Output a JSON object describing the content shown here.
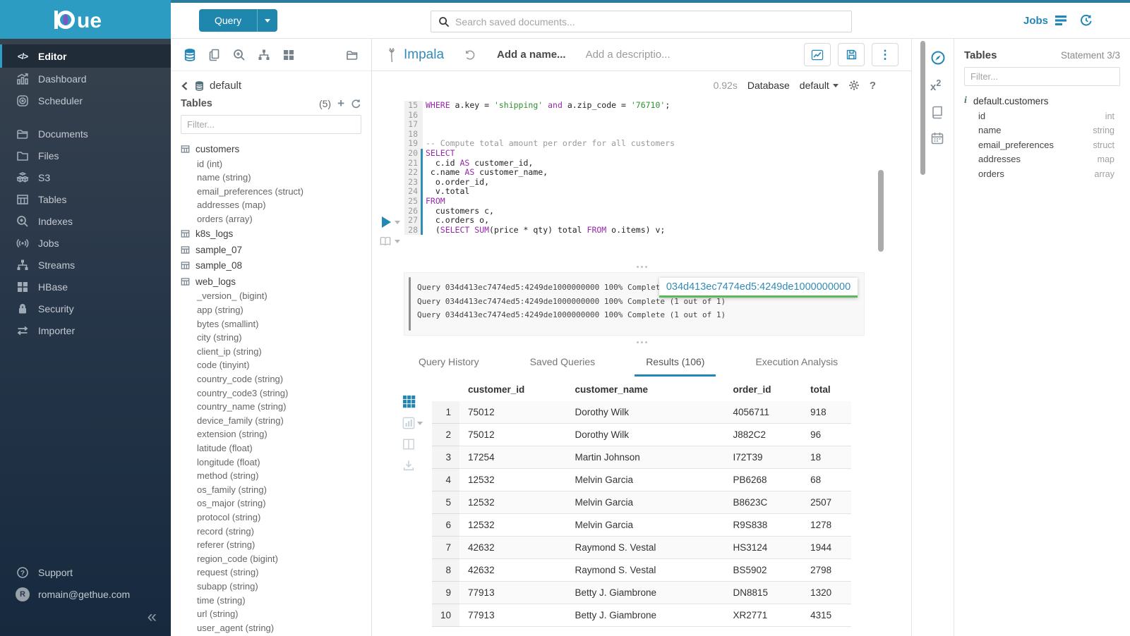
{
  "icons": {
    "editor_glyph": "</>",
    "plus": "+",
    "help": "?",
    "collapse": "«",
    "info": "i",
    "x2_base": "x",
    "x2_sup": "2",
    "kebab": "⋮",
    "avatar_letter": "R"
  },
  "logo": {
    "text": "ue"
  },
  "topbar": {
    "query_button": "Query",
    "search_placeholder": "Search saved documents...",
    "jobs_label": "Jobs"
  },
  "sidebar": {
    "items": [
      {
        "label": "Editor"
      },
      {
        "label": "Dashboard"
      },
      {
        "label": "Scheduler"
      },
      {
        "label": "Documents"
      },
      {
        "label": "Files"
      },
      {
        "label": "S3"
      },
      {
        "label": "Tables"
      },
      {
        "label": "Indexes"
      },
      {
        "label": "Jobs"
      },
      {
        "label": "Streams"
      },
      {
        "label": "HBase"
      },
      {
        "label": "Security"
      },
      {
        "label": "Importer"
      }
    ],
    "support_label": "Support",
    "user_email": "romain@gethue.com"
  },
  "assist": {
    "database": "default",
    "tables_label": "Tables",
    "tables_count": "(5)",
    "filter_placeholder": "Filter...",
    "tables": [
      {
        "name": "customers",
        "columns": [
          "id (int)",
          "name (string)",
          "email_preferences (struct)",
          "addresses (map)",
          "orders (array)"
        ]
      },
      {
        "name": "k8s_logs",
        "columns": []
      },
      {
        "name": "sample_07",
        "columns": []
      },
      {
        "name": "sample_08",
        "columns": []
      },
      {
        "name": "web_logs",
        "columns": [
          "_version_ (bigint)",
          "app (string)",
          "bytes (smallint)",
          "city (string)",
          "client_ip (string)",
          "code (tinyint)",
          "country_code (string)",
          "country_code3 (string)",
          "country_name (string)",
          "device_family (string)",
          "extension (string)",
          "latitude (float)",
          "longitude (float)",
          "method (string)",
          "os_family (string)",
          "os_major (string)",
          "protocol (string)",
          "record (string)",
          "referer (string)",
          "region_code (bigint)",
          "request (string)",
          "subapp (string)",
          "time (string)",
          "url (string)",
          "user_agent (string)"
        ]
      }
    ]
  },
  "editor": {
    "engine": "Impala",
    "name_placeholder": "Add a name...",
    "description_placeholder": "Add a descriptio...",
    "duration": "0.92s",
    "database_label": "Database",
    "database_value": "default",
    "code_lines": [
      {
        "n": "15",
        "stmt": false,
        "tokens": [
          [
            "k",
            "WHERE"
          ],
          [
            "p",
            " a.key = "
          ],
          [
            "s",
            "'shipping'"
          ],
          [
            "p",
            " "
          ],
          [
            "k",
            "and"
          ],
          [
            "p",
            " a.zip_code = "
          ],
          [
            "s",
            "'76710'"
          ],
          [
            "p",
            ";"
          ]
        ]
      },
      {
        "n": "16",
        "stmt": false,
        "tokens": []
      },
      {
        "n": "17",
        "stmt": false,
        "tokens": []
      },
      {
        "n": "18",
        "stmt": false,
        "tokens": []
      },
      {
        "n": "19",
        "stmt": false,
        "tokens": [
          [
            "c",
            "-- Compute total amount per order for all customers"
          ]
        ]
      },
      {
        "n": "20",
        "stmt": true,
        "tokens": [
          [
            "k",
            "SELECT"
          ]
        ]
      },
      {
        "n": "21",
        "stmt": true,
        "tokens": [
          [
            "p",
            "  c.id "
          ],
          [
            "k",
            "AS"
          ],
          [
            "p",
            " customer_id,"
          ]
        ]
      },
      {
        "n": "22",
        "stmt": true,
        "tokens": [
          [
            "p",
            " c.name "
          ],
          [
            "k",
            "AS"
          ],
          [
            "p",
            " customer_name,"
          ]
        ]
      },
      {
        "n": "23",
        "stmt": true,
        "tokens": [
          [
            "p",
            "  o.order_id,"
          ]
        ]
      },
      {
        "n": "24",
        "stmt": true,
        "tokens": [
          [
            "p",
            "  v.total"
          ]
        ]
      },
      {
        "n": "25",
        "stmt": true,
        "tokens": [
          [
            "k",
            "FROM"
          ]
        ]
      },
      {
        "n": "26",
        "stmt": true,
        "tokens": [
          [
            "p",
            "  customers c,"
          ]
        ]
      },
      {
        "n": "27",
        "stmt": true,
        "tokens": [
          [
            "p",
            "  c.orders o,"
          ]
        ]
      },
      {
        "n": "28",
        "stmt": true,
        "tokens": [
          [
            "p",
            "  ("
          ],
          [
            "k",
            "SELECT"
          ],
          [
            "p",
            " "
          ],
          [
            "k",
            "SUM"
          ],
          [
            "p",
            "(price * qty) total "
          ],
          [
            "k",
            "FROM"
          ],
          [
            "p",
            " o.items) v;"
          ]
        ]
      }
    ],
    "log_lines": [
      "Query 034d413ec7474ed5:4249de1000000000 100% Complete (1 out of 1)",
      "Query 034d413ec7474ed5:4249de1000000000 100% Complete (1 out of 1)",
      "Query 034d413ec7474ed5:4249de1000000000 100% Complete (1 out of 1)"
    ],
    "query_id_badge": "034d413ec7474ed5:4249de1000000000",
    "tabs": [
      {
        "label": "Query History",
        "active": false
      },
      {
        "label": "Saved Queries",
        "active": false
      },
      {
        "label": "Results (106)",
        "active": true
      },
      {
        "label": "Execution Analysis",
        "active": false
      }
    ],
    "results": {
      "columns": [
        "customer_id",
        "customer_name",
        "order_id",
        "total"
      ],
      "rows": [
        [
          "1",
          "75012",
          "Dorothy Wilk",
          "4056711",
          "918"
        ],
        [
          "2",
          "75012",
          "Dorothy Wilk",
          "J882C2",
          "96"
        ],
        [
          "3",
          "17254",
          "Martin Johnson",
          "I72T39",
          "18"
        ],
        [
          "4",
          "12532",
          "Melvin Garcia",
          "PB6268",
          "68"
        ],
        [
          "5",
          "12532",
          "Melvin Garcia",
          "B8623C",
          "2507"
        ],
        [
          "6",
          "12532",
          "Melvin Garcia",
          "R9S838",
          "1278"
        ],
        [
          "7",
          "42632",
          "Raymond S. Vestal",
          "HS3124",
          "1944"
        ],
        [
          "8",
          "42632",
          "Raymond S. Vestal",
          "BS5902",
          "2798"
        ],
        [
          "9",
          "77913",
          "Betty J. Giambrone",
          "DN8815",
          "1320"
        ],
        [
          "10",
          "77913",
          "Betty J. Giambrone",
          "XR2771",
          "4315"
        ]
      ]
    }
  },
  "right_panel": {
    "title": "Tables",
    "statement": "Statement 3/3",
    "filter_placeholder": "Filter...",
    "table_name": "default.customers",
    "columns": [
      {
        "name": "id",
        "type": "int"
      },
      {
        "name": "name",
        "type": "string"
      },
      {
        "name": "email_preferences",
        "type": "struct"
      },
      {
        "name": "addresses",
        "type": "map"
      },
      {
        "name": "orders",
        "type": "array"
      }
    ]
  },
  "colors": {
    "accent": "#2386b5",
    "brand_blue": "#338bb8",
    "topbar_strip": "#2a7a9b",
    "logo_bg": "#2c9cc3",
    "keyword": "#9529a8",
    "string": "#2f9030",
    "comment": "#999999",
    "badge_underline": "#5cb85c"
  }
}
